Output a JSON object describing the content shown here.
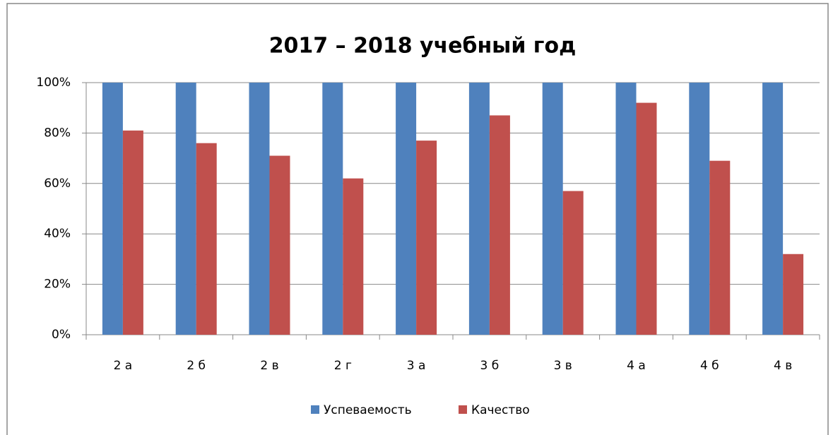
{
  "chart_data": {
    "type": "bar",
    "title": "2017 – 2018 учебный год",
    "categories": [
      "2 а",
      "2 б",
      "2 в",
      "2 г",
      "3 а",
      "3 б",
      "3 в",
      "4 а",
      "4 б",
      "4 в"
    ],
    "series": [
      {
        "name": "Успеваемость",
        "color": "#4f81bd",
        "values": [
          100,
          100,
          100,
          100,
          100,
          100,
          100,
          100,
          100,
          100
        ]
      },
      {
        "name": "Качество",
        "color": "#c0504d",
        "values": [
          81,
          76,
          71,
          62,
          77,
          87,
          57,
          92,
          69,
          32
        ]
      }
    ],
    "ylim": [
      0,
      100
    ],
    "yticks": [
      {
        "value": 0,
        "label": "0%"
      },
      {
        "value": 20,
        "label": "20%"
      },
      {
        "value": 40,
        "label": "40%"
      },
      {
        "value": 60,
        "label": "60%"
      },
      {
        "value": 80,
        "label": "80%"
      },
      {
        "value": 100,
        "label": "100%"
      }
    ],
    "grid": true,
    "legend": "bottom"
  }
}
